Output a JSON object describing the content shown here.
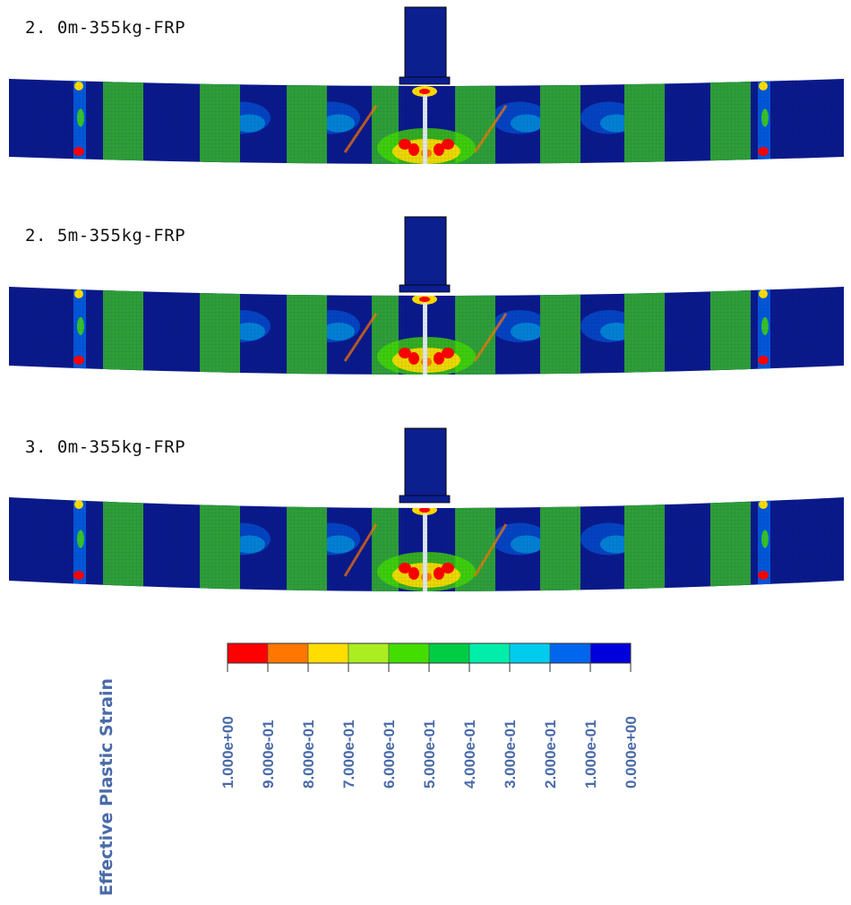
{
  "panels": [
    {
      "label": "2. 0m-355kg-FRP"
    },
    {
      "label": "2. 5m-355kg-FRP"
    },
    {
      "label": "3. 0m-355kg-FRP"
    }
  ],
  "legend": {
    "title": "Effective Plastic Strain",
    "ticks": [
      "1.000e+00",
      "9.000e-01",
      "8.000e-01",
      "7.000e-01",
      "6.000e-01",
      "5.000e-01",
      "4.000e-01",
      "3.000e-01",
      "2.000e-01",
      "1.000e-01",
      "0.000e+00"
    ],
    "colors": [
      "#ff0000",
      "#ff7700",
      "#ffdd00",
      "#aaee22",
      "#44dd00",
      "#00cc44",
      "#00eeaa",
      "#00ccee",
      "#0066ee",
      "#0000dd"
    ]
  },
  "model_colors": {
    "beam_background": "#0a1a8c",
    "frp_band": "#2e9e3a",
    "impactor": "#0c1f8f"
  }
}
